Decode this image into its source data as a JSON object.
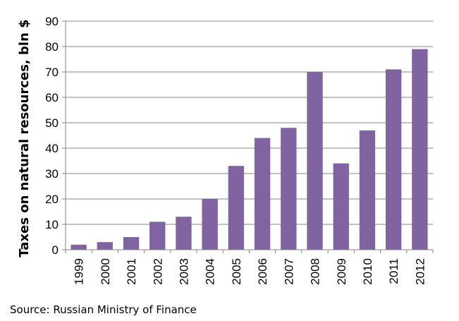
{
  "chart_data": {
    "type": "bar",
    "title": "",
    "xlabel": "",
    "ylabel": "Taxes on natural resources, bln $",
    "categories": [
      "1999",
      "2000",
      "2001",
      "2002",
      "2003",
      "2004",
      "2005",
      "2006",
      "2007",
      "2008",
      "2009",
      "2010",
      "2011",
      "2012"
    ],
    "values": [
      2,
      3,
      5,
      11,
      13,
      20,
      33,
      44,
      48,
      70,
      34,
      47,
      71,
      79
    ],
    "ylim": [
      0,
      90
    ],
    "yticks": [
      0,
      10,
      20,
      30,
      40,
      50,
      60,
      70,
      80,
      90
    ],
    "grid": true,
    "legend": "none",
    "bar_color": "#8064a2"
  },
  "source": "Source: Russian Ministry of Finance"
}
